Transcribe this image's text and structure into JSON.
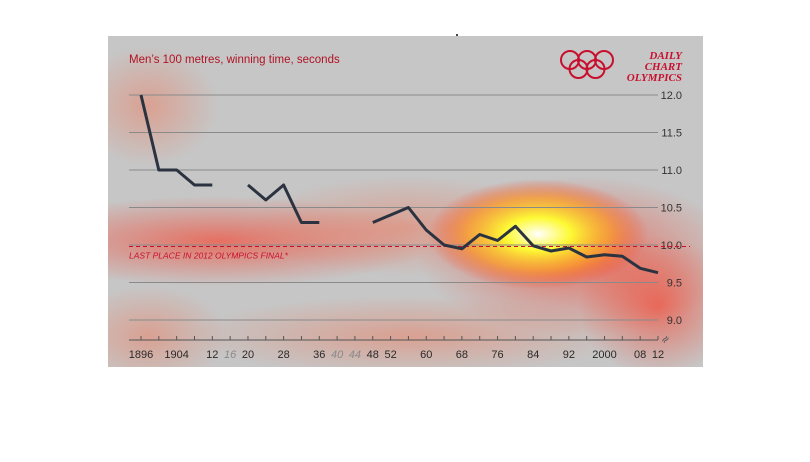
{
  "chart_data": {
    "type": "line",
    "subtitle": "Men’s 100 metres, winning time, seconds",
    "branding": {
      "logo": "olympic-rings",
      "lines": [
        "DAILY",
        "CHART",
        "OLYMPICS"
      ],
      "color": "#c8102e"
    },
    "x_tick_labels": [
      {
        "label": "1896",
        "year": 1896,
        "cancelled": false
      },
      {
        "label": "1904",
        "year": 1904,
        "cancelled": false
      },
      {
        "label": "12",
        "year": 1912,
        "cancelled": false
      },
      {
        "label": "16",
        "year": 1916,
        "cancelled": true
      },
      {
        "label": "20",
        "year": 1920,
        "cancelled": false
      },
      {
        "label": "28",
        "year": 1928,
        "cancelled": false
      },
      {
        "label": "36",
        "year": 1936,
        "cancelled": false
      },
      {
        "label": "40",
        "year": 1940,
        "cancelled": true
      },
      {
        "label": "44",
        "year": 1944,
        "cancelled": true
      },
      {
        "label": "48",
        "year": 1948,
        "cancelled": false
      },
      {
        "label": "52",
        "year": 1952,
        "cancelled": false
      },
      {
        "label": "60",
        "year": 1960,
        "cancelled": false
      },
      {
        "label": "68",
        "year": 1968,
        "cancelled": false
      },
      {
        "label": "76",
        "year": 1976,
        "cancelled": false
      },
      {
        "label": "84",
        "year": 1984,
        "cancelled": false
      },
      {
        "label": "92",
        "year": 1992,
        "cancelled": false
      },
      {
        "label": "2000",
        "year": 2000,
        "cancelled": false
      },
      {
        "label": "08",
        "year": 2008,
        "cancelled": false
      },
      {
        "label": "12",
        "year": 2012,
        "cancelled": false
      }
    ],
    "y_ticks": [
      12.0,
      11.5,
      11.0,
      10.5,
      10.0,
      9.5,
      9.0
    ],
    "y_tick_labels": [
      "12.0",
      "11.5",
      "11.0",
      "10.5",
      "10.0",
      "9.5",
      "9.0"
    ],
    "ylim": [
      9.0,
      12.0
    ],
    "xlim": [
      1896,
      2012
    ],
    "axis_break_symbol": "≈",
    "grid": true,
    "series_color": "#2b3340",
    "series": [
      {
        "segments": [
          [
            [
              1896,
              12.0
            ],
            [
              1900,
              11.0
            ],
            [
              1904,
              11.0
            ],
            [
              1908,
              10.8
            ],
            [
              1912,
              10.8
            ]
          ],
          [
            [
              1920,
              10.8
            ],
            [
              1924,
              10.6
            ],
            [
              1928,
              10.8
            ],
            [
              1932,
              10.3
            ],
            [
              1936,
              10.3
            ]
          ],
          [
            [
              1948,
              10.3
            ],
            [
              1952,
              10.4
            ],
            [
              1956,
              10.5
            ],
            [
              1960,
              10.2
            ],
            [
              1964,
              10.0
            ],
            [
              1968,
              9.95
            ],
            [
              1972,
              10.14
            ],
            [
              1976,
              10.06
            ],
            [
              1980,
              10.25
            ],
            [
              1984,
              9.99
            ],
            [
              1988,
              9.92
            ],
            [
              1992,
              9.96
            ],
            [
              1996,
              9.84
            ],
            [
              2000,
              9.87
            ],
            [
              2004,
              9.85
            ],
            [
              2008,
              9.69
            ],
            [
              2012,
              9.63
            ]
          ]
        ]
      }
    ],
    "reference_line": {
      "value": 9.98,
      "label": "LAST PLACE IN 2012 OLYMPICS FINAL*",
      "color": "#c8102e"
    }
  }
}
